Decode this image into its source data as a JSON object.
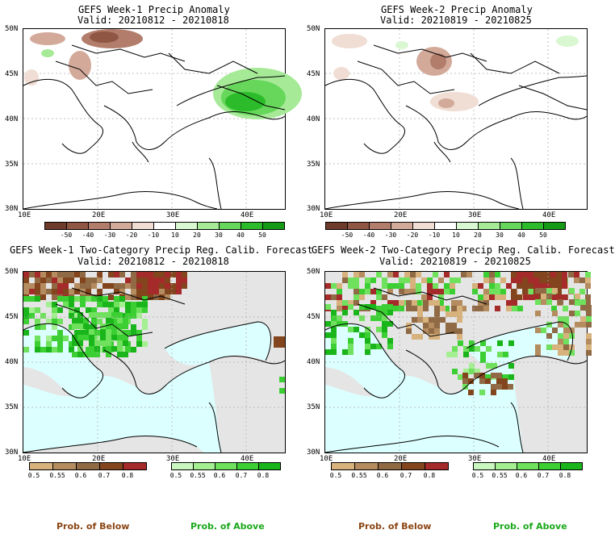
{
  "panels": [
    {
      "title_line1": "GEFS Week-1 Precip Anomaly",
      "title_line2": "Valid: 20210812 - 20210818"
    },
    {
      "title_line1": "GEFS Week-2 Precip Anomaly",
      "title_line2": "Valid: 20210819 - 20210825"
    },
    {
      "title_line1": "GEFS Week-1 Two-Category Precip Reg. Calib. Forecast",
      "title_line2": "Valid: 20210812 - 20210818"
    },
    {
      "title_line1": "GEFS Week-2 Two-Category Precip Reg. Calib. Forecast",
      "title_line2": "Valid: 20210819 - 20210825"
    }
  ],
  "lat_labels": [
    "50N",
    "45N",
    "40N",
    "35N",
    "30N"
  ],
  "lon_labels": [
    "10E",
    "20E",
    "30E",
    "40E"
  ],
  "anomaly_colorbar": {
    "ticks": [
      "-50",
      "-40",
      "-30",
      "-20",
      "-10",
      "10",
      "20",
      "30",
      "40",
      "50"
    ],
    "colors": [
      "#6e3a2a",
      "#8f5643",
      "#b27d6b",
      "#d3aa9a",
      "#f0ddd3",
      "#ffffff",
      "#d9f7d0",
      "#a6ea98",
      "#66d75a",
      "#2cbb2a",
      "#149a14"
    ]
  },
  "below_colorbar": {
    "ticks": [
      "0.5",
      "0.55",
      "0.6",
      "0.7",
      "0.8"
    ],
    "colors": [
      "#d8b27d",
      "#b58c5f",
      "#8f6a45",
      "#82451d",
      "#a52a2a"
    ]
  },
  "above_colorbar": {
    "ticks": [
      "0.5",
      "0.55",
      "0.6",
      "0.7",
      "0.8"
    ],
    "colors": [
      "#c9f7bf",
      "#a3ef92",
      "#6fe15d",
      "#3ccf33",
      "#1ab51a"
    ]
  },
  "legend": {
    "below_label": "Prob. of Below",
    "above_label": "Prob. of Above",
    "below_color": "#8b4513",
    "above_color": "#1aa81a"
  },
  "map_colors": {
    "sea_prob": "#dcffff",
    "land_neutral": "#e5e5e5"
  }
}
